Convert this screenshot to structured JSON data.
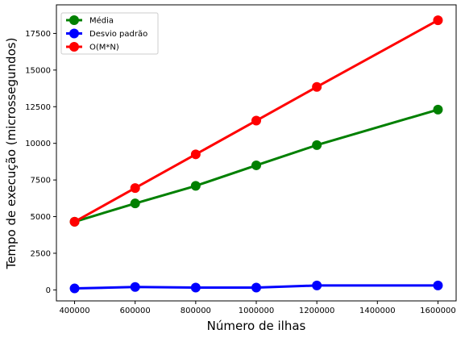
{
  "chart_data": {
    "type": "line",
    "xlabel": "Número de ilhas",
    "ylabel": "Tempo de execução (microssegundos)",
    "x": [
      400000,
      600000,
      800000,
      1000000,
      1200000,
      1600000
    ],
    "xlim": [
      340000,
      1660000
    ],
    "ylim": [
      -750,
      19450
    ],
    "xticks": [
      400000,
      600000,
      800000,
      1000000,
      1200000,
      1400000,
      1600000
    ],
    "xtick_labels": [
      "400000",
      "600000",
      "800000",
      "1000000",
      "1200000",
      "1400000",
      "1600000"
    ],
    "yticks": [
      0,
      2500,
      5000,
      7500,
      10000,
      12500,
      15000,
      17500
    ],
    "ytick_labels": [
      "0",
      "2500",
      "5000",
      "7500",
      "10000",
      "12500",
      "15000",
      "17500"
    ],
    "grid": false,
    "legend_position": "top-left",
    "series": [
      {
        "name": "Média",
        "color": "#008000",
        "values": [
          4650,
          5900,
          7100,
          8500,
          9880,
          12300
        ]
      },
      {
        "name": "Desvio padrão",
        "color": "#0000ff",
        "values": [
          100,
          200,
          160,
          160,
          300,
          300
        ]
      },
      {
        "name": "O(M*N)",
        "color": "#ff0000",
        "values": [
          4650,
          6950,
          9250,
          11550,
          13850,
          18400
        ]
      }
    ]
  }
}
